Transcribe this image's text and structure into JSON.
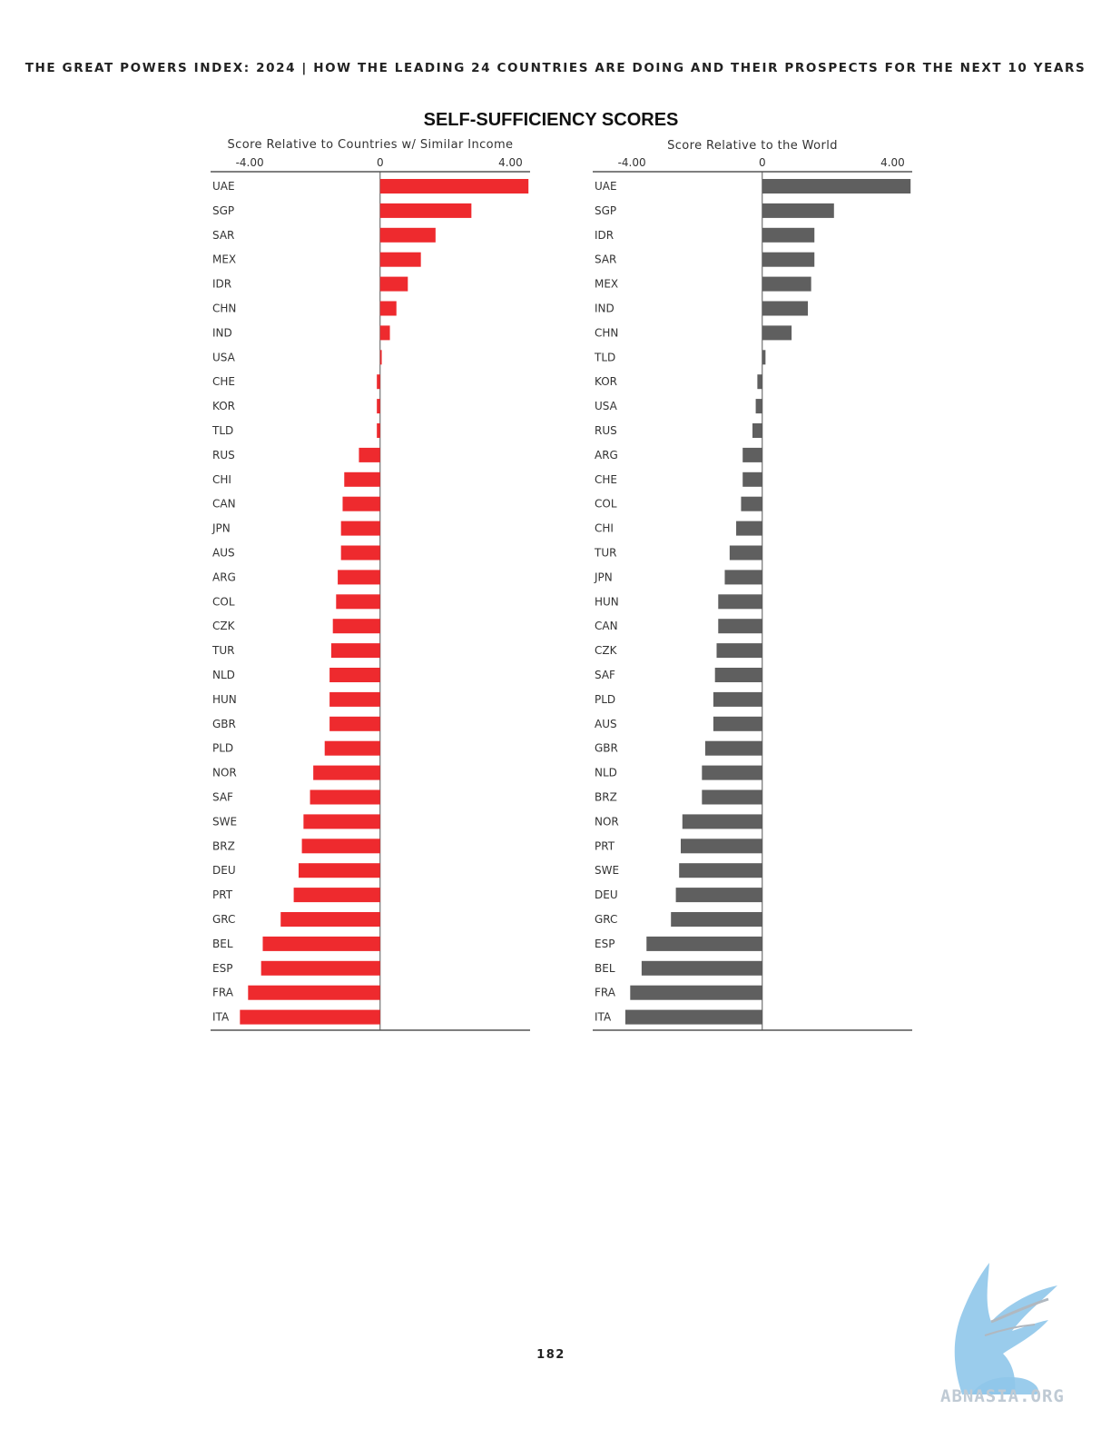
{
  "header": "THE GREAT POWERS INDEX: 2024 | HOW THE LEADING 24 COUNTRIES ARE DOING AND THEIR PROSPECTS FOR THE NEXT 10 YEARS",
  "title": "SELF-SUFFICIENCY SCORES",
  "page_number": "182",
  "watermark_text": "ABNASIA.ORG",
  "colors": {
    "left_bar": "#ee2a2e",
    "right_bar": "#5f5f5f",
    "axis": "#555555"
  },
  "chart_data": [
    {
      "type": "bar",
      "orientation": "horizontal",
      "title": "Score Relative to Countries w/ Similar Income",
      "xlim": [
        -5.2,
        4.6
      ],
      "ticks": [
        -4,
        0,
        4
      ],
      "tick_labels": [
        "-4.00",
        "0",
        "4.00"
      ],
      "grid": false,
      "categories": [
        "UAE",
        "SGP",
        "SAR",
        "MEX",
        "IDR",
        "CHN",
        "IND",
        "USA",
        "CHE",
        "KOR",
        "TLD",
        "RUS",
        "CHI",
        "CAN",
        "JPN",
        "AUS",
        "ARG",
        "COL",
        "CZK",
        "TUR",
        "NLD",
        "HUN",
        "GBR",
        "PLD",
        "NOR",
        "SAF",
        "SWE",
        "BRZ",
        "DEU",
        "PRT",
        "GRC",
        "BEL",
        "ESP",
        "FRA",
        "ITA"
      ],
      "values": [
        4.55,
        2.8,
        1.7,
        1.25,
        0.85,
        0.5,
        0.3,
        0.05,
        -0.1,
        -0.1,
        -0.1,
        -0.65,
        -1.1,
        -1.15,
        -1.2,
        -1.2,
        -1.3,
        -1.35,
        -1.45,
        -1.5,
        -1.55,
        -1.55,
        -1.55,
        -1.7,
        -2.05,
        -2.15,
        -2.35,
        -2.4,
        -2.5,
        -2.65,
        -3.05,
        -3.6,
        -3.65,
        -4.05,
        -4.3
      ]
    },
    {
      "type": "bar",
      "orientation": "horizontal",
      "title": "Score Relative to the World",
      "xlim": [
        -5.2,
        4.6
      ],
      "ticks": [
        -4,
        0,
        4
      ],
      "tick_labels": [
        "-4.00",
        "0",
        "4.00"
      ],
      "grid": false,
      "categories": [
        "UAE",
        "SGP",
        "IDR",
        "SAR",
        "MEX",
        "IND",
        "CHN",
        "TLD",
        "KOR",
        "USA",
        "RUS",
        "ARG",
        "CHE",
        "COL",
        "CHI",
        "TUR",
        "JPN",
        "HUN",
        "CAN",
        "CZK",
        "SAF",
        "PLD",
        "AUS",
        "GBR",
        "NLD",
        "BRZ",
        "NOR",
        "PRT",
        "SWE",
        "DEU",
        "GRC",
        "ESP",
        "BEL",
        "FRA",
        "ITA"
      ],
      "values": [
        4.55,
        2.2,
        1.6,
        1.6,
        1.5,
        1.4,
        0.9,
        0.1,
        -0.15,
        -0.2,
        -0.3,
        -0.6,
        -0.6,
        -0.65,
        -0.8,
        -1.0,
        -1.15,
        -1.35,
        -1.35,
        -1.4,
        -1.45,
        -1.5,
        -1.5,
        -1.75,
        -1.85,
        -1.85,
        -2.45,
        -2.5,
        -2.55,
        -2.65,
        -2.8,
        -3.55,
        -3.7,
        -4.05,
        -4.2
      ]
    }
  ]
}
